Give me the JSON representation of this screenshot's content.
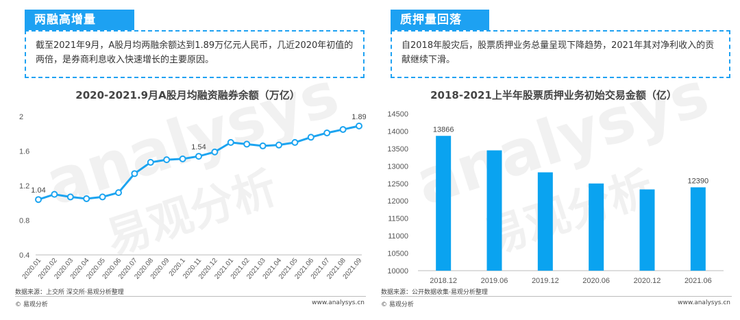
{
  "left": {
    "tag": "两融高增量",
    "note": "截至2021年9月，A股月均两融余额达到1.89万亿元人民币，几近2020年初值的两倍，是券商利息收入快速增长的主要原因。",
    "source": "数据来源：上交所 深交所·易观分析整理",
    "brand": "© 易观分析",
    "site": "www.analysys.cn"
  },
  "right": {
    "tag": "质押量回落",
    "note": "自2018年股灾后，股票质押业务总量呈现下降趋势，2021年其对净利收入的贡献继续下滑。",
    "source": "数据来源：公开数据收集·易观分析整理",
    "brand": "© 易观分析",
    "site": "www.analysys.cn"
  },
  "watermark": {
    "latin": "analysys",
    "cjk": "易观分析"
  },
  "colors": {
    "accent": "#1da1f2",
    "line": "#1ca4f0",
    "bar": "#0aa3f0"
  },
  "chart_data": [
    {
      "type": "line",
      "title": "2020-2021.9月A股月均融资融券余额（万亿）",
      "categories": [
        "2020.01",
        "2020.02",
        "2020.03",
        "2020.04",
        "2020.05",
        "2020.06",
        "2020.07",
        "2020.08",
        "2020.09",
        "2020.1",
        "2020.11",
        "2020.12",
        "2021.01",
        "2021.02",
        "2021.03",
        "2021.04",
        "2021.05",
        "2021.06",
        "2021.07",
        "2021.08",
        "2021.09"
      ],
      "values": [
        1.04,
        1.1,
        1.07,
        1.05,
        1.07,
        1.12,
        1.34,
        1.47,
        1.5,
        1.51,
        1.54,
        1.59,
        1.7,
        1.68,
        1.66,
        1.67,
        1.7,
        1.76,
        1.81,
        1.85,
        1.89
      ],
      "labels": {
        "0": "1.04",
        "10": "1.54",
        "20": "1.89"
      },
      "yticks": [
        "0.4",
        "0.8",
        "1.2",
        "1.6",
        "2"
      ],
      "ylim": [
        0.4,
        2.0
      ],
      "xlabel": "",
      "ylabel": ""
    },
    {
      "type": "bar",
      "title": "2018-2021上半年股票质押业务初始交易金额（亿）",
      "categories": [
        "2018.12",
        "2019.06",
        "2019.12",
        "2020.06",
        "2020.12",
        "2021.06"
      ],
      "values": [
        13866,
        13450,
        12820,
        12500,
        12330,
        12390
      ],
      "labels": {
        "0": "13866",
        "5": "12390"
      },
      "yticks": [
        "10000",
        "10500",
        "11000",
        "11500",
        "12000",
        "12500",
        "13000",
        "13500",
        "14000",
        "14500"
      ],
      "ylim": [
        10000,
        14500
      ],
      "xlabel": "",
      "ylabel": ""
    }
  ]
}
